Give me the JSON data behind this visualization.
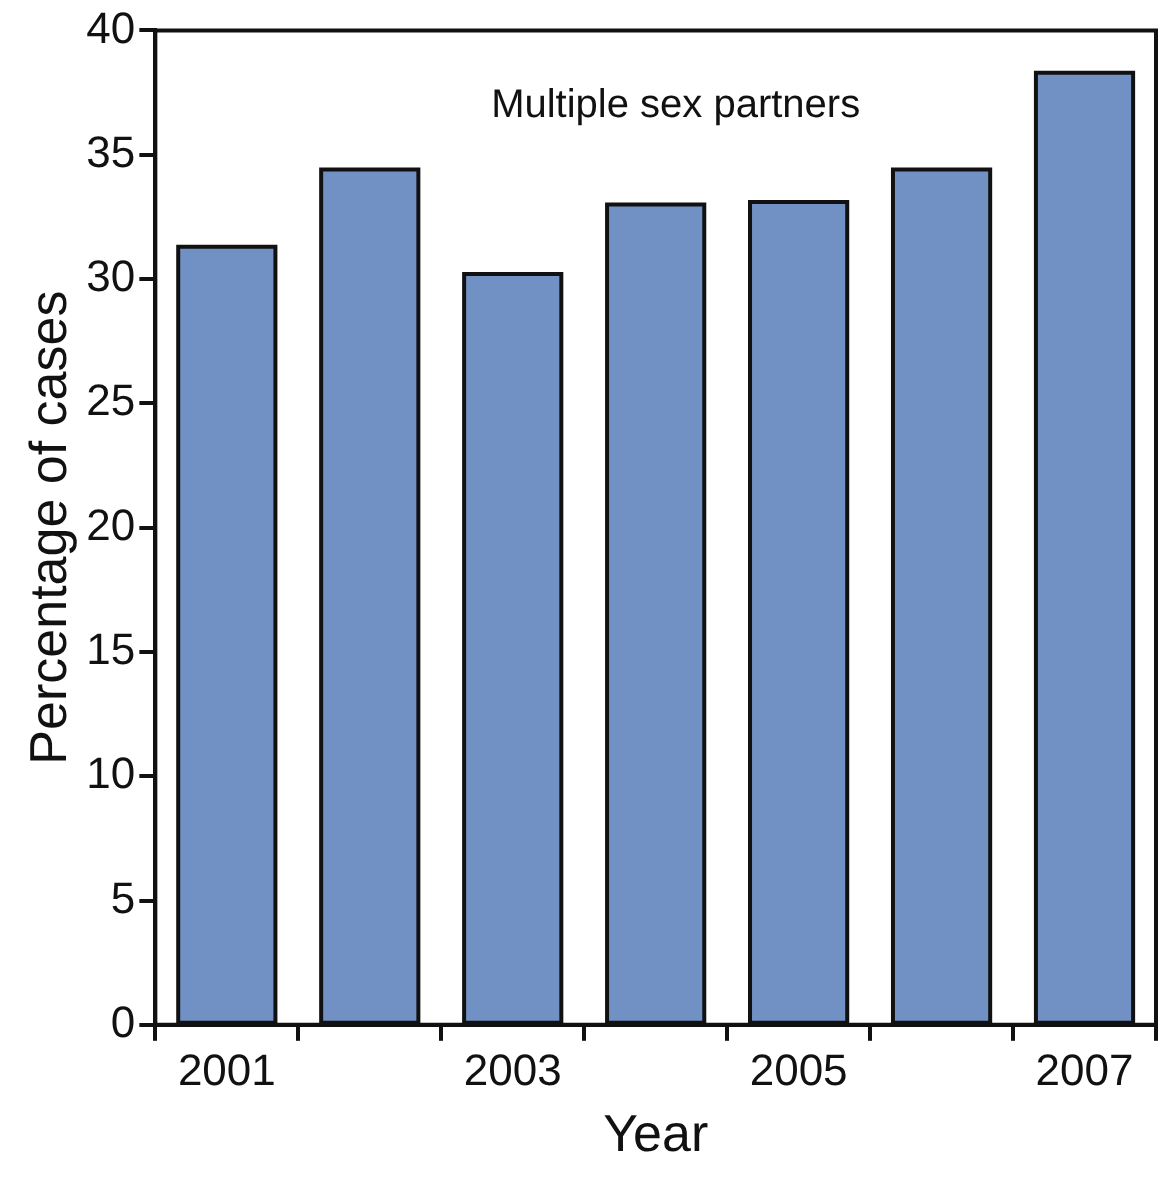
{
  "chart_data": {
    "type": "bar",
    "xlabel": "Year",
    "ylabel": "Percentage of cases",
    "annotations": [
      "Multiple sex partners"
    ],
    "categories": [
      "2001",
      null,
      "2003",
      null,
      "2005",
      null,
      "2007"
    ],
    "values": [
      31.3,
      34.4,
      30.2,
      33.0,
      33.1,
      34.4,
      38.3
    ],
    "color": "#7191c4",
    "ylim": [
      0,
      40
    ],
    "yticks": [
      0,
      5,
      10,
      15,
      20,
      25,
      30,
      35,
      40
    ],
    "grid": false,
    "legend": false
  }
}
